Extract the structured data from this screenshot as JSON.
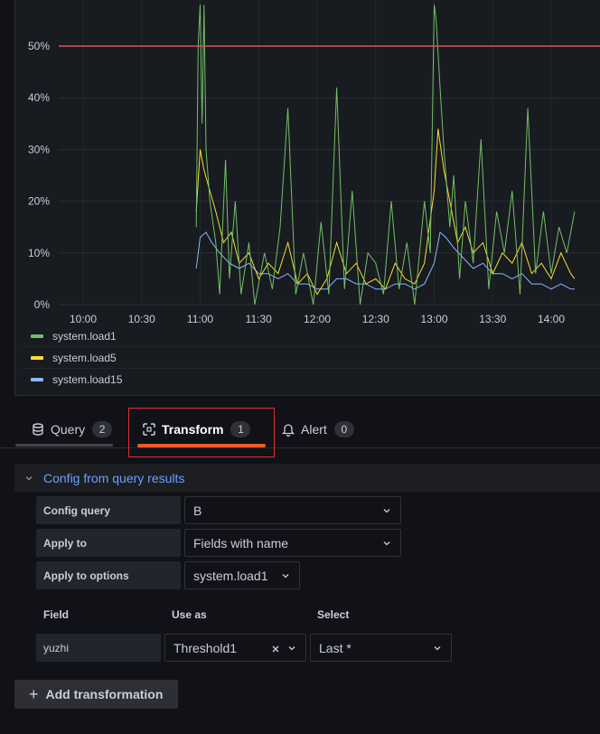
{
  "chart_data": {
    "type": "line",
    "x_ticks": [
      "10:00",
      "10:30",
      "11:00",
      "11:30",
      "12:00",
      "12:30",
      "13:00",
      "13:30",
      "14:00"
    ],
    "y_ticks": [
      "0%",
      "10%",
      "20%",
      "30%",
      "40%",
      "50%"
    ],
    "ylim": [
      0,
      0.58
    ],
    "threshold": {
      "value": 0.5,
      "color": "#e0535f"
    },
    "grid": true,
    "legend_position": "bottom",
    "series": [
      {
        "name": "system.load1",
        "color": "#73bf69",
        "x": [
          "10:58",
          "10:59",
          "11:00",
          "11:01",
          "11:02",
          "11:03",
          "11:05",
          "11:08",
          "11:10",
          "11:13",
          "11:15",
          "11:18",
          "11:21",
          "11:25",
          "11:28",
          "11:33",
          "11:37",
          "11:41",
          "11:45",
          "11:49",
          "11:53",
          "11:58",
          "12:02",
          "12:06",
          "12:10",
          "12:14",
          "12:18",
          "12:22",
          "12:26",
          "12:30",
          "12:34",
          "12:38",
          "12:42",
          "12:46",
          "12:50",
          "12:55",
          "12:58",
          "13:00",
          "13:01",
          "13:03",
          "13:05",
          "13:08",
          "13:10",
          "13:13",
          "13:16",
          "13:20",
          "13:24",
          "13:28",
          "13:32",
          "13:36",
          "13:40",
          "13:44",
          "13:48",
          "13:52",
          "13:56",
          "14:00",
          "14:04",
          "14:08",
          "14:12"
        ],
        "values": [
          0.15,
          0.5,
          0.58,
          0.35,
          0.58,
          0.3,
          0.2,
          0.12,
          0.02,
          0.28,
          0.05,
          0.2,
          0.02,
          0.12,
          0.0,
          0.1,
          0.03,
          0.15,
          0.38,
          0.02,
          0.1,
          0.0,
          0.16,
          0.02,
          0.42,
          0.03,
          0.22,
          0.0,
          0.1,
          0.08,
          0.02,
          0.2,
          0.03,
          0.12,
          0.0,
          0.2,
          0.1,
          0.58,
          0.55,
          0.42,
          0.3,
          0.15,
          0.25,
          0.05,
          0.2,
          0.08,
          0.32,
          0.03,
          0.18,
          0.1,
          0.22,
          0.02,
          0.38,
          0.06,
          0.18,
          0.06,
          0.15,
          0.1,
          0.18
        ]
      },
      {
        "name": "system.load5",
        "color": "#fade2a",
        "x": [
          "10:58",
          "11:00",
          "11:02",
          "11:05",
          "11:08",
          "11:12",
          "11:16",
          "11:20",
          "11:25",
          "11:30",
          "11:35",
          "11:40",
          "11:45",
          "11:50",
          "11:55",
          "12:00",
          "12:05",
          "12:10",
          "12:15",
          "12:20",
          "12:25",
          "12:30",
          "12:35",
          "12:40",
          "12:45",
          "12:50",
          "12:55",
          "13:00",
          "13:02",
          "13:05",
          "13:08",
          "13:12",
          "13:16",
          "13:20",
          "13:25",
          "13:30",
          "13:35",
          "13:40",
          "13:45",
          "13:50",
          "13:55",
          "14:00",
          "14:05",
          "14:10",
          "14:12"
        ],
        "values": [
          0.18,
          0.3,
          0.26,
          0.22,
          0.18,
          0.12,
          0.14,
          0.08,
          0.1,
          0.05,
          0.08,
          0.06,
          0.12,
          0.04,
          0.06,
          0.02,
          0.05,
          0.12,
          0.06,
          0.08,
          0.04,
          0.05,
          0.03,
          0.08,
          0.05,
          0.04,
          0.08,
          0.22,
          0.34,
          0.26,
          0.2,
          0.12,
          0.15,
          0.1,
          0.12,
          0.06,
          0.1,
          0.08,
          0.12,
          0.06,
          0.08,
          0.05,
          0.1,
          0.06,
          0.05
        ]
      },
      {
        "name": "system.load15",
        "color": "#8ab8ff",
        "x": [
          "10:58",
          "11:00",
          "11:03",
          "11:06",
          "11:10",
          "11:15",
          "11:20",
          "11:25",
          "11:30",
          "11:35",
          "11:40",
          "11:45",
          "11:50",
          "11:55",
          "12:00",
          "12:05",
          "12:10",
          "12:15",
          "12:20",
          "12:25",
          "12:30",
          "12:35",
          "12:40",
          "12:45",
          "12:50",
          "12:55",
          "13:00",
          "13:03",
          "13:06",
          "13:10",
          "13:15",
          "13:20",
          "13:25",
          "13:30",
          "13:35",
          "13:40",
          "13:45",
          "13:50",
          "13:55",
          "14:00",
          "14:05",
          "14:10",
          "14:12"
        ],
        "values": [
          0.07,
          0.13,
          0.14,
          0.12,
          0.1,
          0.08,
          0.07,
          0.08,
          0.06,
          0.06,
          0.05,
          0.06,
          0.04,
          0.04,
          0.03,
          0.03,
          0.05,
          0.05,
          0.04,
          0.04,
          0.03,
          0.03,
          0.04,
          0.04,
          0.03,
          0.04,
          0.08,
          0.14,
          0.13,
          0.11,
          0.09,
          0.07,
          0.08,
          0.06,
          0.06,
          0.05,
          0.06,
          0.04,
          0.04,
          0.03,
          0.04,
          0.03,
          0.03
        ]
      }
    ]
  },
  "tabs": [
    {
      "label": "Query",
      "count": "2"
    },
    {
      "label": "Transform",
      "count": "1"
    },
    {
      "label": "Alert",
      "count": "0"
    }
  ],
  "transform": {
    "title": "Config from query results",
    "rows": [
      {
        "label": "Config query",
        "value": "B"
      },
      {
        "label": "Apply to",
        "value": "Fields with name"
      },
      {
        "label": "Apply to options",
        "value": "system.load1"
      }
    ],
    "mapping_headers": {
      "field": "Field",
      "use_as": "Use as",
      "select": "Select"
    },
    "mapping_row": {
      "field": "yuzhi",
      "use_as": "Threshold1",
      "select": "Last *"
    }
  },
  "add_transformation_label": "Add transformation"
}
